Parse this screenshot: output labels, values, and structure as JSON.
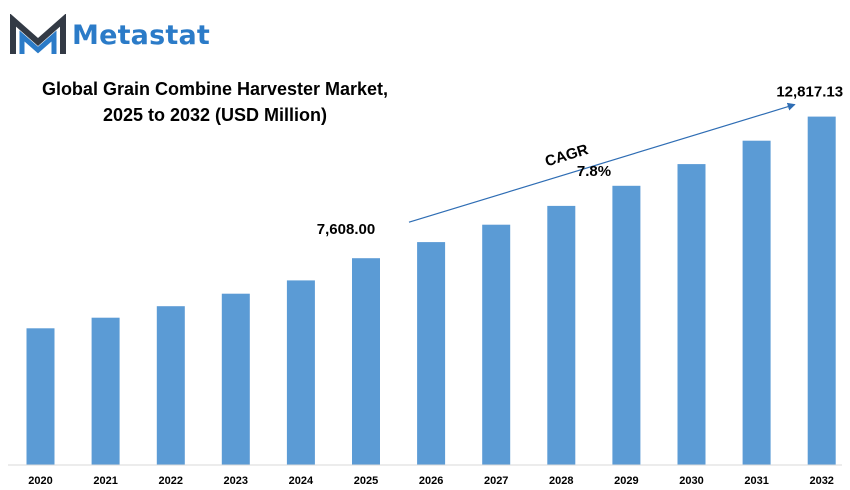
{
  "brand": {
    "name": "Metastat",
    "color": "#2b7bc8",
    "icon": "metastat-m-logo-icon"
  },
  "chart_data": {
    "type": "bar",
    "title_lines": [
      "Global Grain Combine Harvester Market,",
      "2025 to 2032 (USD Million)"
    ],
    "categories": [
      "2020",
      "2021",
      "2022",
      "2023",
      "2024",
      "2025",
      "2026",
      "2027",
      "2028",
      "2029",
      "2030",
      "2031",
      "2032"
    ],
    "values": [
      5030,
      5420,
      5840,
      6300,
      6790,
      7608.0,
      8200,
      8840,
      9530,
      10270,
      11070,
      11930,
      12817.13
    ],
    "bar_color": "#5b9bd5",
    "data_labels": [
      {
        "category": "2025",
        "text": "7,608.00"
      },
      {
        "category": "2032",
        "text": "12,817.13"
      }
    ],
    "annotation": {
      "label": "CAGR",
      "value": "7.8%",
      "from": "2025",
      "to": "2032"
    },
    "xlabel": "",
    "ylabel": "",
    "ylim": [
      0,
      13500
    ],
    "grid": false,
    "legend": "none"
  }
}
